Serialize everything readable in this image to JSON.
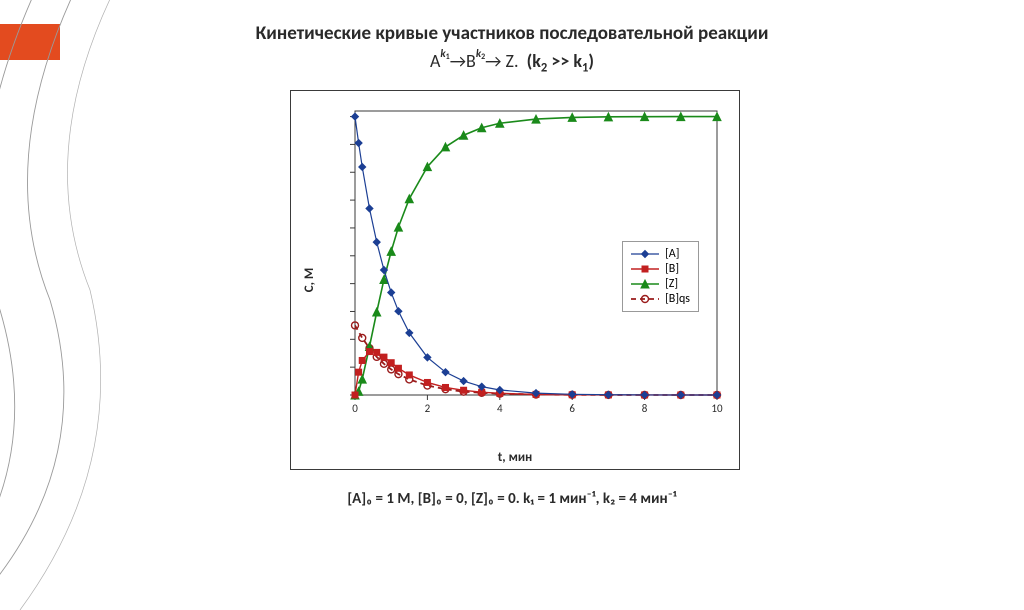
{
  "title": "Кинетические кривые участников последовательной реакции",
  "subtitle_parts": {
    "A": "A",
    "arrow": "→",
    "B": "B",
    "Z": "Z",
    "dot": ".",
    "k1": "k",
    "k1sub": "1",
    "k2": "k",
    "k2sub": "2",
    "cond_open": "(k",
    "cond_sub2": "2",
    "cond_mid": " >> k",
    "cond_sub1": "1",
    "cond_close": ")"
  },
  "caption": "[A]₀ = 1 M, [B]₀ = 0, [Z]₀ = 0.   k₁ = 1 мин⁻¹, k₂ = 4 мин⁻¹",
  "chart": {
    "type": "line-scatter",
    "xlim": [
      0,
      10
    ],
    "ylim": [
      0,
      1.02
    ],
    "xtick_step": 2,
    "ytick_step": 0.1,
    "xlabel": "t, мин",
    "ylabel": "C, M",
    "grid": false,
    "background_color": "#ffffff",
    "border_color": "#3a3a3a",
    "tick_color": "#3a3a3a",
    "tick_fontsize": 11,
    "label_fontsize": 13,
    "label_fontweight": 700,
    "series": {
      "A": {
        "label": "[A]",
        "color": "#1c3f94",
        "marker": "diamond",
        "marker_size": 7,
        "line_width": 1.2,
        "t": [
          0,
          0.1,
          0.2,
          0.4,
          0.6,
          0.8,
          1,
          1.2,
          1.5,
          2,
          2.5,
          3,
          3.5,
          4,
          5,
          6,
          7,
          8,
          9,
          10
        ],
        "c": [
          1.0,
          0.905,
          0.819,
          0.67,
          0.549,
          0.449,
          0.368,
          0.301,
          0.223,
          0.135,
          0.082,
          0.05,
          0.03,
          0.018,
          0.0067,
          0.0025,
          0.0009,
          0.0003,
          0.0001,
          5e-05
        ]
      },
      "B": {
        "label": "[B]",
        "color": "#c22020",
        "marker": "square",
        "marker_size": 6,
        "line_width": 1.4,
        "t": [
          0,
          0.1,
          0.2,
          0.4,
          0.6,
          0.8,
          1,
          1.2,
          1.5,
          2,
          2.5,
          3,
          3.5,
          4,
          5,
          6,
          7,
          8,
          9,
          10
        ],
        "c": [
          0.0,
          0.082,
          0.124,
          0.156,
          0.153,
          0.136,
          0.116,
          0.096,
          0.072,
          0.045,
          0.027,
          0.017,
          0.01,
          0.006,
          0.0022,
          0.0008,
          0.0003,
          0.0001,
          4e-05,
          2e-05
        ]
      },
      "Z": {
        "label": "[Z]",
        "color": "#1a8a1a",
        "marker": "triangle",
        "marker_size": 8,
        "line_width": 1.6,
        "t": [
          0,
          0.1,
          0.2,
          0.4,
          0.6,
          0.8,
          1,
          1.2,
          1.5,
          2,
          2.5,
          3,
          3.5,
          4,
          5,
          6,
          7,
          8,
          9,
          10
        ],
        "c": [
          0.0,
          0.013,
          0.057,
          0.174,
          0.298,
          0.415,
          0.516,
          0.603,
          0.705,
          0.82,
          0.891,
          0.933,
          0.96,
          0.976,
          0.991,
          0.997,
          0.999,
          0.9996,
          0.9999,
          0.99995
        ]
      },
      "Bqs": {
        "label": "[B]qs",
        "color": "#9a1b1b",
        "marker": "circle-open",
        "marker_size": 7,
        "line_dash": "5,4",
        "line_width": 1.8,
        "t": [
          0,
          0.2,
          0.4,
          0.6,
          0.8,
          1,
          1.2,
          1.5,
          2,
          2.5,
          3,
          3.5,
          4,
          5,
          6,
          7,
          8,
          9,
          10
        ],
        "c": [
          0.25,
          0.205,
          0.168,
          0.137,
          0.112,
          0.092,
          0.075,
          0.056,
          0.034,
          0.021,
          0.012,
          0.008,
          0.005,
          0.0017,
          0.0006,
          0.0002,
          8e-05,
          3e-05,
          1e-05
        ]
      }
    },
    "legend": {
      "position": "right-middle",
      "border_color": "#999999",
      "fontsize": 12
    }
  },
  "accent_color": "#e34b1f",
  "deco_curve_color": "#808080"
}
